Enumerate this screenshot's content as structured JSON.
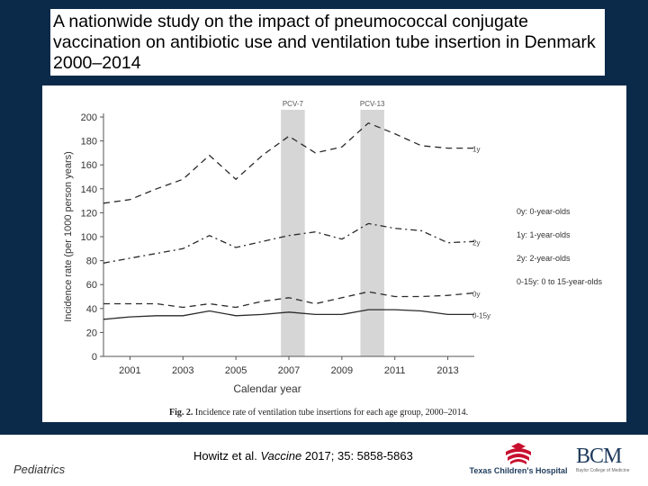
{
  "slide": {
    "title": "A nationwide study on the impact of pneumococcal conjugate vaccination on antibiotic use and ventilation tube insertion in Denmark 2000–2014",
    "footer_left": "Pediatrics",
    "citation_authors": "Howitz et al.",
    "citation_journal": "Vaccine",
    "citation_details": "2017; 35: 5858-5863",
    "logo_tch": "Texas Children's Hospital",
    "logo_bcm": "BCM",
    "logo_bcm_sub": "Baylor College of Medicine"
  },
  "colors": {
    "background": "#0b2a4a",
    "shading": "#d6d6d6",
    "lines": "#2a2a2a"
  },
  "chart_data": {
    "type": "line",
    "xlabel": "Calendar year",
    "ylabel": "Incidence rate (per 1000 person years)",
    "xlim": [
      2000,
      2014
    ],
    "ylim": [
      0,
      200
    ],
    "x_ticks": [
      2001,
      2003,
      2005,
      2007,
      2009,
      2011,
      2013
    ],
    "y_ticks": [
      0,
      20,
      40,
      60,
      80,
      100,
      120,
      140,
      160,
      180,
      200
    ],
    "caption_label": "Fig. 2.",
    "caption_text": "Incidence rate of ventilation tube insertions for each age group, 2000–2014.",
    "bands": [
      {
        "label": "PCV-7",
        "x0": 2006.7,
        "x1": 2007.6
      },
      {
        "label": "PCV-13",
        "x0": 2009.7,
        "x1": 2010.6
      }
    ],
    "x": [
      2000,
      2001,
      2002,
      2003,
      2004,
      2005,
      2006,
      2007,
      2008,
      2009,
      2010,
      2011,
      2012,
      2013,
      2014
    ],
    "series": [
      {
        "name": "1y",
        "style": "dash",
        "values": [
          128,
          131,
          140,
          148,
          168,
          148,
          168,
          184,
          170,
          175,
          195,
          186,
          176,
          174,
          174
        ]
      },
      {
        "name": "2y",
        "style": "dashdot",
        "values": [
          78,
          82,
          86,
          90,
          101,
          91,
          96,
          101,
          104,
          98,
          111,
          107,
          105,
          95,
          96
        ]
      },
      {
        "name": "0y",
        "style": "dash",
        "values": [
          44,
          44,
          44,
          41,
          44,
          41,
          46,
          49,
          44,
          49,
          54,
          50,
          50,
          51,
          53
        ]
      },
      {
        "name": "0-15y",
        "style": "solid",
        "values": [
          31,
          33,
          34,
          34,
          38,
          34,
          35,
          37,
          35,
          35,
          39,
          39,
          38,
          35,
          35
        ]
      }
    ],
    "legend": {
      "placement": "right",
      "entries": [
        "0y: 0-year-olds",
        "1y: 1-year-olds",
        "2y: 2-year-olds",
        "0-15y: 0 to 15-year-olds"
      ]
    }
  }
}
